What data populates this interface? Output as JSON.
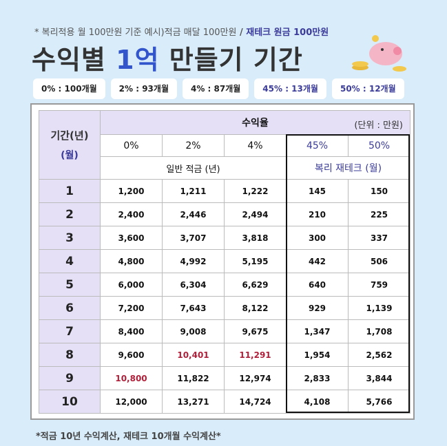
{
  "header": {
    "note": [
      "* 복리적용 월 100만원 기준 예시)적금 매달 100만원",
      " / ",
      "재테크 원금 100만원"
    ],
    "title": [
      "수익별 ",
      "1억",
      " 만들기 기간"
    ]
  },
  "pills": [
    "0% : 100개월",
    "2% : 93개월",
    "4% : 87개월",
    "45% : 13개월",
    "50% : 12개월"
  ],
  "table": {
    "period_header": [
      "기간(년)",
      "(월)"
    ],
    "rate_header": "수익율",
    "unit": "(단위 : 만원)",
    "columns": [
      "0%",
      "2%",
      "4%",
      "45%",
      "50%"
    ],
    "groups": [
      "일반 적금 (년)",
      "복리 재테크 (월)"
    ],
    "rows": [
      {
        "period": "1",
        "cells": [
          "1,200",
          "1,211",
          "1,222",
          "145",
          "150"
        ]
      },
      {
        "period": "2",
        "cells": [
          "2,400",
          "2,446",
          "2,494",
          "210",
          "225"
        ]
      },
      {
        "period": "3",
        "cells": [
          "3,600",
          "3,707",
          "3,818",
          "300",
          "337"
        ]
      },
      {
        "period": "4",
        "cells": [
          "4,800",
          "4,992",
          "5,195",
          "442",
          "506"
        ]
      },
      {
        "period": "5",
        "cells": [
          "6,000",
          "6,304",
          "6,629",
          "640",
          "759"
        ]
      },
      {
        "period": "6",
        "cells": [
          "7,200",
          "7,643",
          "8,122",
          "929",
          "1,139"
        ]
      },
      {
        "period": "7",
        "cells": [
          "8,400",
          "9,008",
          "9,675",
          "1,347",
          "1,708"
        ]
      },
      {
        "period": "8",
        "cells": [
          "9,600",
          {
            "text": "10,401",
            "color": "#b0203a"
          },
          {
            "text": "11,291",
            "color": "#b0203a"
          },
          "1,954",
          "2,562"
        ]
      },
      {
        "period": "9",
        "cells": [
          {
            "text": "10,800",
            "color": "#b0203a"
          },
          "11,822",
          "12,974",
          "2,833",
          "3,844"
        ]
      },
      {
        "period": "10",
        "cells": [
          "12,000",
          "13,271",
          "14,724",
          "4,108",
          "5,766"
        ]
      }
    ]
  },
  "footer": "*적금 10년 수익계산, 재테크 10개월 수익계산*"
}
